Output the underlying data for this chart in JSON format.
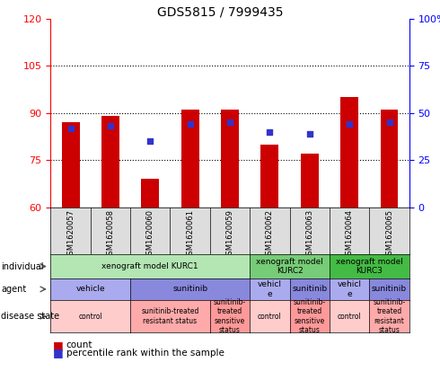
{
  "title": "GDS5815 / 7999435",
  "samples": [
    "GSM1620057",
    "GSM1620058",
    "GSM1620060",
    "GSM1620061",
    "GSM1620059",
    "GSM1620062",
    "GSM1620063",
    "GSM1620064",
    "GSM1620065"
  ],
  "count_values": [
    87,
    89,
    69,
    91,
    91,
    80,
    77,
    95,
    91
  ],
  "percentile_values": [
    42,
    43,
    35,
    44,
    45,
    40,
    39,
    44,
    45
  ],
  "ylim_left": [
    60,
    120
  ],
  "ylim_right": [
    0,
    100
  ],
  "yticks_left": [
    60,
    75,
    90,
    105,
    120
  ],
  "yticks_right": [
    0,
    25,
    50,
    75,
    100
  ],
  "bar_color": "#cc0000",
  "dot_color": "#3333cc",
  "bar_bottom": 60,
  "individual_row": {
    "spans": [
      {
        "start": 0,
        "end": 5,
        "label": "xenograft model KURC1",
        "color": "#b3e6b3"
      },
      {
        "start": 5,
        "end": 7,
        "label": "xenograft model\nKURC2",
        "color": "#77cc77"
      },
      {
        "start": 7,
        "end": 9,
        "label": "xenograft model\nKURC3",
        "color": "#44bb44"
      }
    ]
  },
  "agent_row": {
    "spans": [
      {
        "start": 0,
        "end": 2,
        "label": "vehicle",
        "color": "#aaaaee"
      },
      {
        "start": 2,
        "end": 5,
        "label": "sunitinib",
        "color": "#8888dd"
      },
      {
        "start": 5,
        "end": 6,
        "label": "vehicl\ne",
        "color": "#aaaaee"
      },
      {
        "start": 6,
        "end": 7,
        "label": "sunitinib",
        "color": "#8888dd"
      },
      {
        "start": 7,
        "end": 8,
        "label": "vehicl\ne",
        "color": "#aaaaee"
      },
      {
        "start": 8,
        "end": 9,
        "label": "sunitinib",
        "color": "#8888dd"
      }
    ]
  },
  "disease_row": {
    "spans": [
      {
        "start": 0,
        "end": 2,
        "label": "control",
        "color": "#ffcccc"
      },
      {
        "start": 2,
        "end": 4,
        "label": "sunitinib-treated\nresistant status",
        "color": "#ffaaaa"
      },
      {
        "start": 4,
        "end": 5,
        "label": "sunitinib-\ntreated\nsensitive\nstatus",
        "color": "#ff9999"
      },
      {
        "start": 5,
        "end": 6,
        "label": "control",
        "color": "#ffcccc"
      },
      {
        "start": 6,
        "end": 7,
        "label": "sunitinib-\ntreated\nsensitive\nstatus",
        "color": "#ff9999"
      },
      {
        "start": 7,
        "end": 8,
        "label": "control",
        "color": "#ffcccc"
      },
      {
        "start": 8,
        "end": 9,
        "label": "sunitinib-\ntreated\nresistant\nstatus",
        "color": "#ffaaaa"
      }
    ]
  },
  "row_labels": [
    "individual",
    "agent",
    "disease state"
  ],
  "legend_count": "count",
  "legend_percentile": "percentile rank within the sample",
  "sample_bg_color": "#dddddd",
  "chart_bg_color": "#ffffff"
}
